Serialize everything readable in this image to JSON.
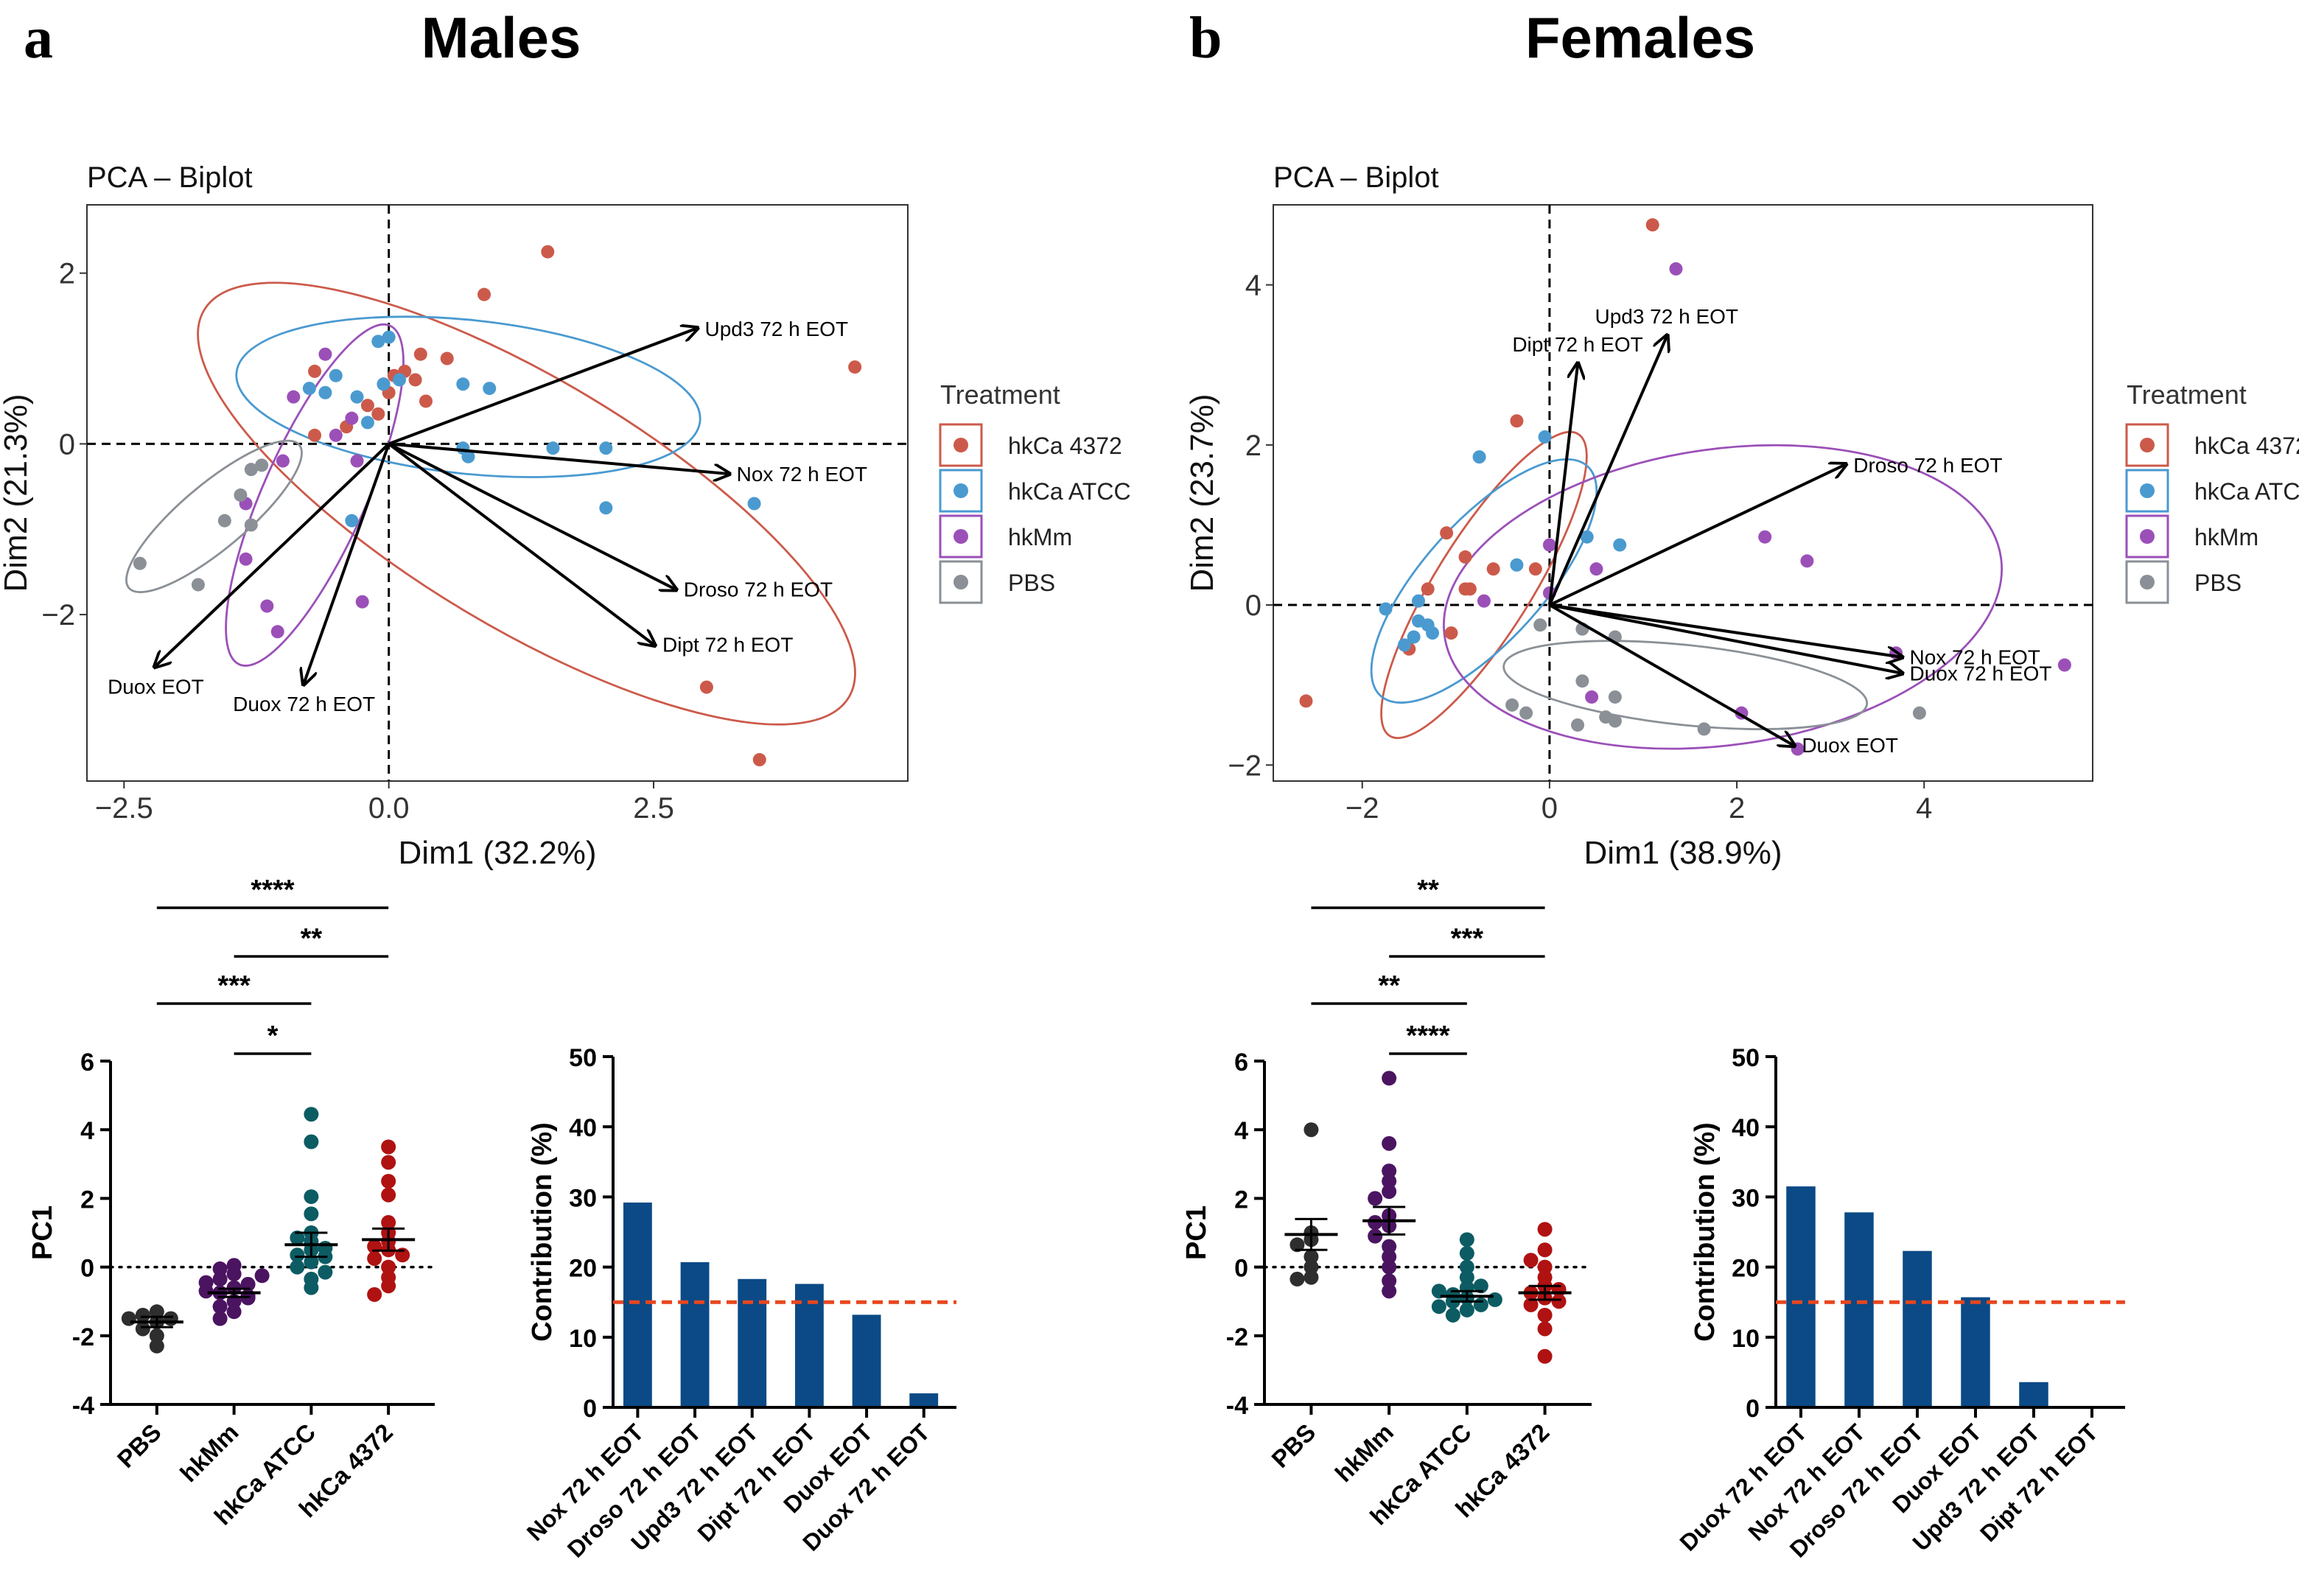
{
  "colors": {
    "hkCa 4372": "#cc5a4a",
    "hkCa ATCC": "#4a9ad0",
    "hkMm": "#9b50b8",
    "PBS": "#8a9096",
    "dot_pbs": "#2e2e2e",
    "dot_hkmm": "#4b1461",
    "dot_atcc": "#0d5c63",
    "dot_4372": "#b01212",
    "bar": "#0b4a86",
    "refline": "#e8461e"
  },
  "legend": {
    "title": "Treatment",
    "items": [
      "hkCa 4372",
      "hkCa ATCC",
      "hkMm",
      "PBS"
    ]
  },
  "chart_data": [
    {
      "id": "males_pca",
      "type": "scatter",
      "panel": "a",
      "panel_title": "Males",
      "title": "PCA – Biplot",
      "xlabel": "Dim1 (32.2%)",
      "ylabel": "Dim2 (21.3%)",
      "xlim": [
        -2.85,
        4.9
      ],
      "ylim": [
        -3.95,
        2.8
      ],
      "xticks": [
        -2.5,
        0.0,
        2.5
      ],
      "xtick_labels": [
        "−2.5",
        "0.0",
        "2.5"
      ],
      "yticks": [
        -2,
        0,
        2
      ],
      "ytick_labels": [
        "−2",
        "0",
        "2"
      ],
      "series": [
        {
          "name": "hkCa 4372",
          "points": [
            [
              1.5,
              2.25
            ],
            [
              0.9,
              1.75
            ],
            [
              4.4,
              0.9
            ],
            [
              3.0,
              -2.85
            ],
            [
              3.5,
              -3.7
            ],
            [
              0.3,
              1.05
            ],
            [
              0.55,
              1.0
            ],
            [
              0.05,
              0.8
            ],
            [
              -0.05,
              0.7
            ],
            [
              0.25,
              0.75
            ],
            [
              0.35,
              0.5
            ],
            [
              -0.7,
              0.85
            ],
            [
              -0.2,
              0.45
            ],
            [
              -0.4,
              0.2
            ],
            [
              -0.7,
              0.1
            ],
            [
              -0.1,
              0.35
            ],
            [
              0.0,
              0.6
            ],
            [
              0.15,
              0.85
            ]
          ]
        },
        {
          "name": "hkCa ATCC",
          "points": [
            [
              -0.1,
              1.2
            ],
            [
              0.0,
              1.25
            ],
            [
              -0.5,
              0.8
            ],
            [
              -0.75,
              0.65
            ],
            [
              -0.3,
              0.55
            ],
            [
              -0.6,
              0.6
            ],
            [
              0.7,
              0.7
            ],
            [
              0.95,
              0.65
            ],
            [
              1.55,
              -0.05
            ],
            [
              2.05,
              -0.05
            ],
            [
              0.7,
              -0.05
            ],
            [
              0.75,
              -0.15
            ],
            [
              2.05,
              -0.75
            ],
            [
              3.45,
              -0.7
            ],
            [
              -0.35,
              -0.9
            ],
            [
              -0.2,
              0.25
            ],
            [
              -0.05,
              0.7
            ],
            [
              0.1,
              0.75
            ]
          ]
        },
        {
          "name": "hkMm",
          "points": [
            [
              -0.6,
              1.05
            ],
            [
              -0.9,
              0.55
            ],
            [
              -0.35,
              0.3
            ],
            [
              -0.3,
              -0.2
            ],
            [
              -1.0,
              -0.2
            ],
            [
              -1.35,
              -0.7
            ],
            [
              -1.35,
              -1.35
            ],
            [
              -1.15,
              -1.9
            ],
            [
              -1.05,
              -2.2
            ],
            [
              -0.25,
              -1.85
            ],
            [
              -0.5,
              0.1
            ]
          ]
        },
        {
          "name": "PBS",
          "points": [
            [
              -1.3,
              -0.3
            ],
            [
              -1.2,
              -0.25
            ],
            [
              -1.4,
              -0.6
            ],
            [
              -1.55,
              -0.9
            ],
            [
              -1.3,
              -0.95
            ],
            [
              -1.8,
              -1.65
            ],
            [
              -2.35,
              -1.4
            ]
          ]
        }
      ],
      "ellipses": [
        {
          "name": "hkCa 4372",
          "cx": 1.3,
          "cy": -0.7,
          "rx": 3.55,
          "ry": 1.45,
          "angle_deg": -31
        },
        {
          "name": "hkCa ATCC",
          "cx": 0.75,
          "cy": 0.55,
          "rx": 2.2,
          "ry": 0.9,
          "angle_deg": -6
        },
        {
          "name": "hkMm",
          "cx": -0.7,
          "cy": -0.6,
          "rx": 1.75,
          "ry": 0.6,
          "angle_deg": 66
        },
        {
          "name": "PBS",
          "cx": -1.65,
          "cy": -0.85,
          "rx": 1.05,
          "ry": 0.38,
          "angle_deg": 40
        }
      ],
      "vectors": [
        {
          "label": "Upd3 72 h EOT",
          "x": 2.9,
          "y": 1.35
        },
        {
          "label": "Nox 72 h EOT",
          "x": 3.2,
          "y": -0.35
        },
        {
          "label": "Droso 72 h EOT",
          "x": 2.7,
          "y": -1.7
        },
        {
          "label": "Dipt 72 h EOT",
          "x": 2.5,
          "y": -2.35
        },
        {
          "label": "Duox EOT",
          "x": -2.2,
          "y": -2.6
        },
        {
          "label": "Duox 72 h EOT",
          "x": -0.8,
          "y": -2.8
        }
      ]
    },
    {
      "id": "females_pca",
      "type": "scatter",
      "panel": "b",
      "panel_title": "Females",
      "title": "PCA – Biplot",
      "xlabel": "Dim1 (38.9%)",
      "ylabel": "Dim2 (23.7%)",
      "xlim": [
        -2.95,
        5.8
      ],
      "ylim": [
        -2.2,
        5.0
      ],
      "xticks": [
        -2,
        0,
        2,
        4
      ],
      "xtick_labels": [
        "−2",
        "0",
        "2",
        "4"
      ],
      "yticks": [
        -2,
        0,
        2,
        4
      ],
      "ytick_labels": [
        "−2",
        "0",
        "2",
        "4"
      ],
      "series": [
        {
          "name": "hkCa 4372",
          "points": [
            [
              1.1,
              4.75
            ],
            [
              -0.35,
              2.3
            ],
            [
              -1.1,
              0.9
            ],
            [
              -0.9,
              0.6
            ],
            [
              -0.6,
              0.45
            ],
            [
              -0.15,
              0.45
            ],
            [
              -0.9,
              0.2
            ],
            [
              -1.3,
              0.2
            ],
            [
              -1.05,
              -0.35
            ],
            [
              -1.5,
              -0.55
            ],
            [
              -2.6,
              -1.2
            ],
            [
              -0.85,
              0.2
            ]
          ]
        },
        {
          "name": "hkCa ATCC",
          "points": [
            [
              -0.75,
              1.85
            ],
            [
              -0.05,
              2.1
            ],
            [
              0.4,
              0.85
            ],
            [
              0.75,
              0.75
            ],
            [
              -0.35,
              0.5
            ],
            [
              -1.4,
              0.05
            ],
            [
              -1.4,
              -0.2
            ],
            [
              -1.3,
              -0.25
            ],
            [
              -1.45,
              -0.4
            ],
            [
              -1.55,
              -0.5
            ],
            [
              -1.25,
              -0.35
            ],
            [
              -1.75,
              -0.05
            ]
          ]
        },
        {
          "name": "hkMm",
          "points": [
            [
              1.35,
              4.2
            ],
            [
              2.3,
              0.85
            ],
            [
              2.75,
              0.55
            ],
            [
              0.5,
              0.45
            ],
            [
              0.0,
              0.75
            ],
            [
              2.65,
              -1.8
            ],
            [
              3.7,
              -0.6
            ],
            [
              5.5,
              -0.75
            ],
            [
              0.45,
              -1.15
            ],
            [
              2.05,
              -1.35
            ],
            [
              -0.7,
              0.05
            ],
            [
              0.0,
              0.15
            ]
          ]
        },
        {
          "name": "PBS",
          "points": [
            [
              -0.1,
              -0.25
            ],
            [
              0.35,
              -0.3
            ],
            [
              0.7,
              -0.4
            ],
            [
              0.35,
              -0.95
            ],
            [
              0.7,
              -1.15
            ],
            [
              0.6,
              -1.4
            ],
            [
              0.7,
              -1.45
            ],
            [
              0.3,
              -1.5
            ],
            [
              -0.4,
              -1.25
            ],
            [
              -0.25,
              -1.35
            ],
            [
              1.65,
              -1.55
            ],
            [
              3.95,
              -1.35
            ]
          ]
        }
      ],
      "ellipses": [
        {
          "name": "hkCa 4372",
          "cx": -0.7,
          "cy": 0.25,
          "rx": 1.9,
          "ry": 0.6,
          "angle_deg": 58
        },
        {
          "name": "hkCa ATCC",
          "cx": -0.7,
          "cy": 0.3,
          "rx": 1.65,
          "ry": 0.75,
          "angle_deg": 48
        },
        {
          "name": "hkMm",
          "cx": 1.85,
          "cy": 0.1,
          "rx": 3.0,
          "ry": 1.85,
          "angle_deg": 8
        },
        {
          "name": "PBS",
          "cx": 1.45,
          "cy": -1.0,
          "rx": 1.95,
          "ry": 0.5,
          "angle_deg": -6
        }
      ],
      "vectors": [
        {
          "label": "Dipt 72 h EOT",
          "x": 0.3,
          "y": 3.0
        },
        {
          "label": "Upd3 72 h EOT",
          "x": 1.25,
          "y": 3.35
        },
        {
          "label": "Droso 72 h EOT",
          "x": 3.15,
          "y": 1.75
        },
        {
          "label": "Nox 72 h EOT",
          "x": 3.75,
          "y": -0.65
        },
        {
          "label": "Duox 72 h EOT",
          "x": 3.75,
          "y": -0.85
        },
        {
          "label": "Duox EOT",
          "x": 2.6,
          "y": -1.75
        }
      ]
    },
    {
      "id": "males_pc1",
      "type": "scatter",
      "ylabel": "PC1",
      "ylim": [
        -4,
        6
      ],
      "yticks": [
        -4,
        -2,
        0,
        2,
        4,
        6
      ],
      "categories": [
        "PBS",
        "hkMm",
        "hkCa ATCC",
        "hkCa 4372"
      ],
      "dot_colors": [
        "dot_pbs",
        "dot_hkmm",
        "dot_atcc",
        "dot_4372"
      ],
      "groups": [
        {
          "values": [
            -1.3,
            -1.4,
            -1.5,
            -1.6,
            -1.8,
            -2.0,
            -2.3,
            -1.5
          ],
          "mean": -1.6,
          "sem": 0.15
        },
        {
          "values": [
            0.05,
            -0.05,
            -0.2,
            -0.35,
            -0.5,
            -0.6,
            -0.75,
            -0.85,
            -1.0,
            -1.15,
            -1.3,
            -1.5,
            -0.45,
            -0.7,
            -0.9,
            -0.25
          ],
          "mean": -0.75,
          "sem": 0.12
        },
        {
          "values": [
            4.45,
            3.65,
            2.05,
            1.55,
            1.0,
            0.75,
            0.5,
            0.35,
            0.15,
            0.0,
            -0.15,
            -0.35,
            -0.6,
            0.85,
            0.3,
            0.55
          ],
          "mean": 0.65,
          "sem": 0.35
        },
        {
          "values": [
            3.5,
            3.05,
            2.5,
            2.1,
            1.3,
            1.0,
            0.75,
            0.5,
            0.25,
            0.0,
            -0.3,
            -0.55,
            -0.8,
            0.6,
            0.35
          ],
          "mean": 0.8,
          "sem": 0.32
        }
      ],
      "significance": [
        {
          "from": 0,
          "to": 3,
          "label": "****"
        },
        {
          "from": 1,
          "to": 3,
          "label": "**"
        },
        {
          "from": 0,
          "to": 2,
          "label": "***"
        },
        {
          "from": 1,
          "to": 2,
          "label": "*"
        }
      ]
    },
    {
      "id": "males_contrib",
      "type": "bar",
      "ylabel": "Contribution (%)",
      "ylim": [
        0,
        50
      ],
      "yticks": [
        0,
        10,
        20,
        30,
        40,
        50
      ],
      "refline": 15,
      "categories": [
        "Nox 72 h EOT",
        "Droso 72 h EOT",
        "Upd3 72 h EOT",
        "Dipt 72 h EOT",
        "Duox EOT",
        "Duox 72 h EOT"
      ],
      "values": [
        29.2,
        20.7,
        18.3,
        17.6,
        13.2,
        2.0
      ]
    },
    {
      "id": "females_pc1",
      "type": "scatter",
      "ylabel": "PC1",
      "ylim": [
        -4,
        6
      ],
      "yticks": [
        -4,
        -2,
        0,
        2,
        4,
        6
      ],
      "categories": [
        "PBS",
        "hkMm",
        "hkCa ATCC",
        "hkCa 4372"
      ],
      "dot_colors": [
        "dot_pbs",
        "dot_hkmm",
        "dot_atcc",
        "dot_4372"
      ],
      "groups": [
        {
          "values": [
            4.0,
            1.0,
            0.8,
            0.65,
            0.3,
            0.0,
            -0.3,
            -0.35
          ],
          "mean": 0.95,
          "sem": 0.45
        },
        {
          "values": [
            5.5,
            3.6,
            2.8,
            2.5,
            2.2,
            2.0,
            1.5,
            1.2,
            0.9,
            0.6,
            0.3,
            0.0,
            -0.4,
            -0.7,
            1.3
          ],
          "mean": 1.35,
          "sem": 0.4
        },
        {
          "values": [
            0.8,
            0.4,
            0.0,
            -0.3,
            -0.6,
            -0.8,
            -0.9,
            -1.0,
            -1.1,
            -1.25,
            -1.4,
            -0.55,
            -0.7,
            -1.15,
            -0.95
          ],
          "mean": -0.85,
          "sem": 0.15
        },
        {
          "values": [
            1.1,
            0.5,
            0.2,
            0.0,
            -0.3,
            -0.55,
            -0.75,
            -0.9,
            -1.1,
            -1.4,
            -1.8,
            -2.6,
            -0.65,
            -1.0
          ],
          "mean": -0.75,
          "sem": 0.2
        }
      ],
      "significance": [
        {
          "from": 0,
          "to": 3,
          "label": "**"
        },
        {
          "from": 1,
          "to": 3,
          "label": "***"
        },
        {
          "from": 0,
          "to": 2,
          "label": "**"
        },
        {
          "from": 1,
          "to": 2,
          "label": "****"
        }
      ]
    },
    {
      "id": "females_contrib",
      "type": "bar",
      "ylabel": "Contribution (%)",
      "ylim": [
        0,
        50
      ],
      "yticks": [
        0,
        10,
        20,
        30,
        40,
        50
      ],
      "refline": 15,
      "categories": [
        "Duox 72 h EOT",
        "Nox 72 h EOT",
        "Droso 72 h EOT",
        "Duox EOT",
        "Upd3 72 h EOT",
        "Dipt 72 h EOT"
      ],
      "values": [
        31.5,
        27.8,
        22.3,
        15.7,
        3.6,
        0.2
      ]
    }
  ]
}
